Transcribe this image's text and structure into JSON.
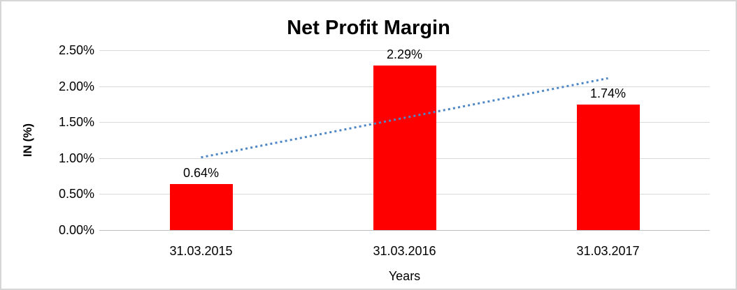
{
  "frame": {
    "background": "#FFFFFF",
    "border_color": "#D6D6D6"
  },
  "chart_data": {
    "type": "bar",
    "title": "Net Profit Margin",
    "categories": [
      "31.03.2015",
      "31.03.2016",
      "31.03.2017"
    ],
    "values": [
      0.64,
      2.29,
      1.74
    ],
    "data_labels": [
      "0.64%",
      "2.29%",
      "1.74%"
    ],
    "xlabel": "Years",
    "ylabel": "IN (%)",
    "ylim": [
      0,
      2.5
    ],
    "yticks": [
      {
        "value": 0.0,
        "label": "0.00%"
      },
      {
        "value": 0.5,
        "label": "0.50%"
      },
      {
        "value": 1.0,
        "label": "1.00%"
      },
      {
        "value": 1.5,
        "label": "1.50%"
      },
      {
        "value": 2.0,
        "label": "2.00%"
      },
      {
        "value": 2.5,
        "label": "2.50%"
      }
    ],
    "grid": true,
    "legend_position": "none",
    "bar_color": "#FF0000",
    "gridline_color": "#D9D9D9",
    "axis_line_color": "#BFBFBF",
    "text_color": "#000000",
    "trendline": {
      "type": "linear",
      "style": "dotted",
      "color": "#4E86C6",
      "start_value": 1.01,
      "end_value": 2.11
    }
  }
}
